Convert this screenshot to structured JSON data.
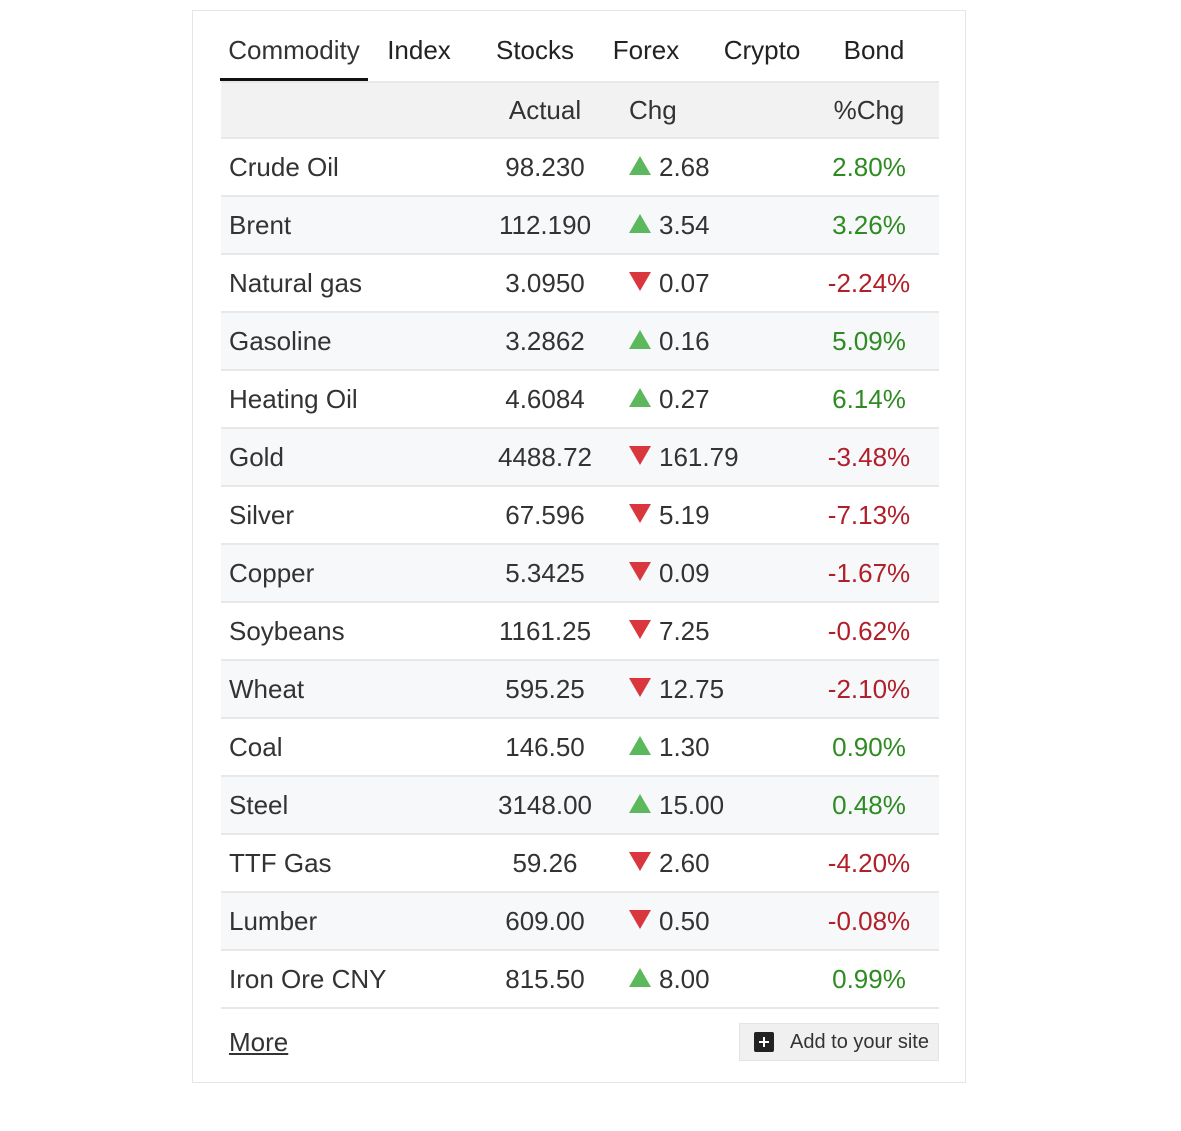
{
  "tabs": [
    "Commodity",
    "Index",
    "Stocks",
    "Forex",
    "Crypto",
    "Bond"
  ],
  "active_tab": "Commodity",
  "columns": {
    "name": "",
    "actual": "Actual",
    "chg": "Chg",
    "pct": "%Chg"
  },
  "rows": [
    {
      "name": "Crude Oil",
      "actual": "98.230",
      "dir": "up",
      "chg": "2.68",
      "pct": "2.80%"
    },
    {
      "name": "Brent",
      "actual": "112.190",
      "dir": "up",
      "chg": "3.54",
      "pct": "3.26%"
    },
    {
      "name": "Natural gas",
      "actual": "3.0950",
      "dir": "down",
      "chg": "0.07",
      "pct": "-2.24%"
    },
    {
      "name": "Gasoline",
      "actual": "3.2862",
      "dir": "up",
      "chg": "0.16",
      "pct": "5.09%"
    },
    {
      "name": "Heating Oil",
      "actual": "4.6084",
      "dir": "up",
      "chg": "0.27",
      "pct": "6.14%"
    },
    {
      "name": "Gold",
      "actual": "4488.72",
      "dir": "down",
      "chg": "161.79",
      "pct": "-3.48%"
    },
    {
      "name": "Silver",
      "actual": "67.596",
      "dir": "down",
      "chg": "5.19",
      "pct": "-7.13%"
    },
    {
      "name": "Copper",
      "actual": "5.3425",
      "dir": "down",
      "chg": "0.09",
      "pct": "-1.67%"
    },
    {
      "name": "Soybeans",
      "actual": "1161.25",
      "dir": "down",
      "chg": "7.25",
      "pct": "-0.62%"
    },
    {
      "name": "Wheat",
      "actual": "595.25",
      "dir": "down",
      "chg": "12.75",
      "pct": "-2.10%"
    },
    {
      "name": "Coal",
      "actual": "146.50",
      "dir": "up",
      "chg": "1.30",
      "pct": "0.90%"
    },
    {
      "name": "Steel",
      "actual": "3148.00",
      "dir": "up",
      "chg": "15.00",
      "pct": "0.48%"
    },
    {
      "name": "TTF Gas",
      "actual": "59.26",
      "dir": "down",
      "chg": "2.60",
      "pct": "-4.20%"
    },
    {
      "name": "Lumber",
      "actual": "609.00",
      "dir": "down",
      "chg": "0.50",
      "pct": "-0.08%"
    },
    {
      "name": "Iron Ore CNY",
      "actual": "815.50",
      "dir": "up",
      "chg": "8.00",
      "pct": "0.99%"
    }
  ],
  "colors": {
    "up_arrow": "#5cb85c",
    "down_arrow": "#d9363e",
    "up_text": "#2e8b22",
    "down_text": "#b0202a"
  },
  "icons": {
    "up": "triangle-up-icon",
    "down": "triangle-down-icon",
    "add": "plus-square-icon"
  },
  "footer": {
    "more_label": "More",
    "add_label": "Add to your site"
  }
}
